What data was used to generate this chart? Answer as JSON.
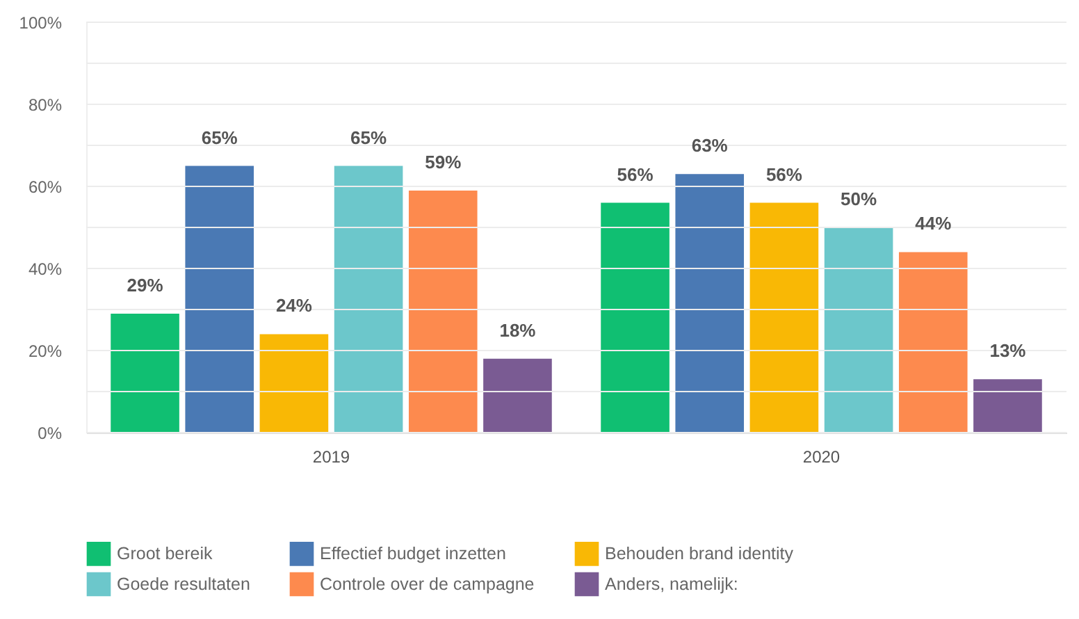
{
  "chart_data": {
    "type": "bar",
    "categories": [
      "2019",
      "2020"
    ],
    "series": [
      {
        "name": "Groot bereik",
        "color": "#10bf72",
        "values": [
          29,
          56
        ],
        "value_labels": [
          "29%",
          "56%"
        ]
      },
      {
        "name": "Effectief budget inzetten",
        "color": "#4a79b4",
        "values": [
          65,
          63
        ],
        "value_labels": [
          "65%",
          "63%"
        ]
      },
      {
        "name": "Behouden brand identity",
        "color": "#f9b805",
        "values": [
          24,
          56
        ],
        "value_labels": [
          "24%",
          "56%"
        ]
      },
      {
        "name": "Goede resultaten",
        "color": "#6cc7cb",
        "values": [
          65,
          50
        ],
        "value_labels": [
          "65%",
          "50%"
        ]
      },
      {
        "name": "Controle over de campagne",
        "color": "#fd8a4e",
        "values": [
          59,
          44
        ],
        "value_labels": [
          "59%",
          "44%"
        ]
      },
      {
        "name": "Anders, namelijk:",
        "color": "#7a5b93",
        "values": [
          18,
          13
        ],
        "value_labels": [
          "18%",
          "13%"
        ]
      }
    ],
    "ylim": [
      0,
      100
    ],
    "yticks": [
      {
        "value": 0,
        "label": "0%"
      },
      {
        "value": 10,
        "label": null
      },
      {
        "value": 20,
        "label": "20%"
      },
      {
        "value": 30,
        "label": null
      },
      {
        "value": 40,
        "label": "40%"
      },
      {
        "value": 50,
        "label": null
      },
      {
        "value": 60,
        "label": "60%"
      },
      {
        "value": 70,
        "label": null
      },
      {
        "value": 80,
        "label": "80%"
      },
      {
        "value": 90,
        "label": null
      },
      {
        "value": 100,
        "label": "100%"
      }
    ],
    "grid": true,
    "legend": "bottom"
  }
}
